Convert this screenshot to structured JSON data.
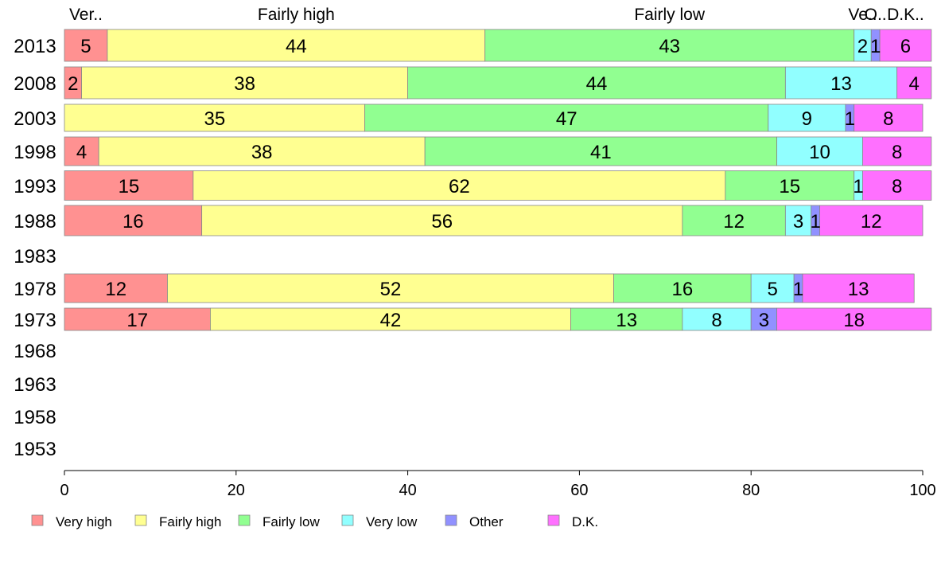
{
  "chart_data": {
    "type": "bar",
    "orientation": "horizontal-stacked",
    "categories": [
      "2013",
      "2008",
      "2003",
      "1998",
      "1993",
      "1988",
      "1983",
      "1978",
      "1973",
      "1968",
      "1963",
      "1958",
      "1953"
    ],
    "series": [
      {
        "name": "Very high",
        "color": "#ff9191",
        "values": [
          5,
          2,
          0,
          4,
          15,
          16,
          null,
          12,
          17,
          null,
          null,
          null,
          null
        ]
      },
      {
        "name": "Fairly high",
        "color": "#ffff91",
        "values": [
          44,
          38,
          35,
          38,
          62,
          56,
          null,
          52,
          42,
          null,
          null,
          null,
          null
        ]
      },
      {
        "name": "Fairly low",
        "color": "#91ff91",
        "values": [
          43,
          44,
          47,
          41,
          15,
          12,
          null,
          16,
          13,
          null,
          null,
          null,
          null
        ]
      },
      {
        "name": "Very low",
        "color": "#91ffff",
        "values": [
          2,
          13,
          9,
          10,
          1,
          3,
          null,
          5,
          8,
          null,
          null,
          null,
          null
        ]
      },
      {
        "name": "Other",
        "color": "#9191ff",
        "values": [
          1,
          0,
          1,
          0,
          0,
          1,
          null,
          1,
          3,
          null,
          null,
          null,
          null
        ]
      },
      {
        "name": "D.K.",
        "color": "#ff70ff",
        "values": [
          6,
          4,
          8,
          8,
          8,
          12,
          null,
          13,
          18,
          null,
          null,
          null,
          null
        ]
      }
    ],
    "value_labels": [
      [
        "5",
        "44",
        "43",
        "2",
        "1",
        "6"
      ],
      [
        "2",
        "38",
        "44",
        "13",
        "",
        "4"
      ],
      [
        "",
        "35",
        "47",
        "9",
        "1",
        "8"
      ],
      [
        "4",
        "38",
        "41",
        "10",
        "",
        "8"
      ],
      [
        "15",
        "62",
        "15",
        "1",
        "",
        "8"
      ],
      [
        "16",
        "56",
        "12",
        "3",
        "1",
        "12"
      ],
      [],
      [
        "12",
        "52",
        "16",
        "5",
        "1",
        "13"
      ],
      [
        "17",
        "42",
        "13",
        "8",
        "3",
        "18"
      ],
      [],
      [],
      [],
      []
    ],
    "top_labels": [
      "Ver..",
      "Fairly high",
      "Fairly low",
      "Ve..",
      "O..",
      "D.K.."
    ],
    "x_ticks": [
      "0",
      "20",
      "40",
      "60",
      "80",
      "100"
    ],
    "xlim": [
      0,
      100
    ],
    "grid": false,
    "legend_position": "bottom"
  }
}
